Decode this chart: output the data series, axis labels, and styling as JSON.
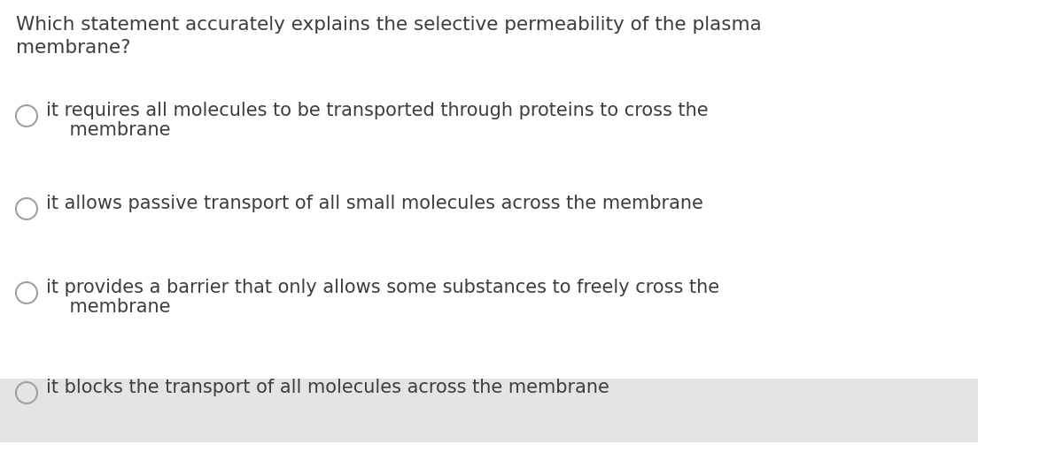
{
  "bg_color": "#ffffff",
  "question_line1": "Which statement accurately explains the selective permeability of the plasma",
  "question_line2": "membrane?",
  "question_fontsize": 15.5,
  "text_color": "#3d3d3d",
  "circle_color": "#a0a0a0",
  "highlight_color": "#e4e4e4",
  "option_fontsize": 15.0,
  "options": [
    {
      "lines": [
        "it requires all molecules to be transported through proteins to cross the",
        "    membrane"
      ],
      "highlighted": false
    },
    {
      "lines": [
        "it allows passive transport of all small molecules across the membrane"
      ],
      "highlighted": false
    },
    {
      "lines": [
        "it provides a barrier that only allows some substances to freely cross the",
        "    membrane"
      ],
      "highlighted": false
    },
    {
      "lines": [
        "it blocks the transport of all molecules across the membrane"
      ],
      "highlighted": true
    }
  ],
  "fig_width": 12.0,
  "fig_height": 5.29,
  "dpi": 100
}
